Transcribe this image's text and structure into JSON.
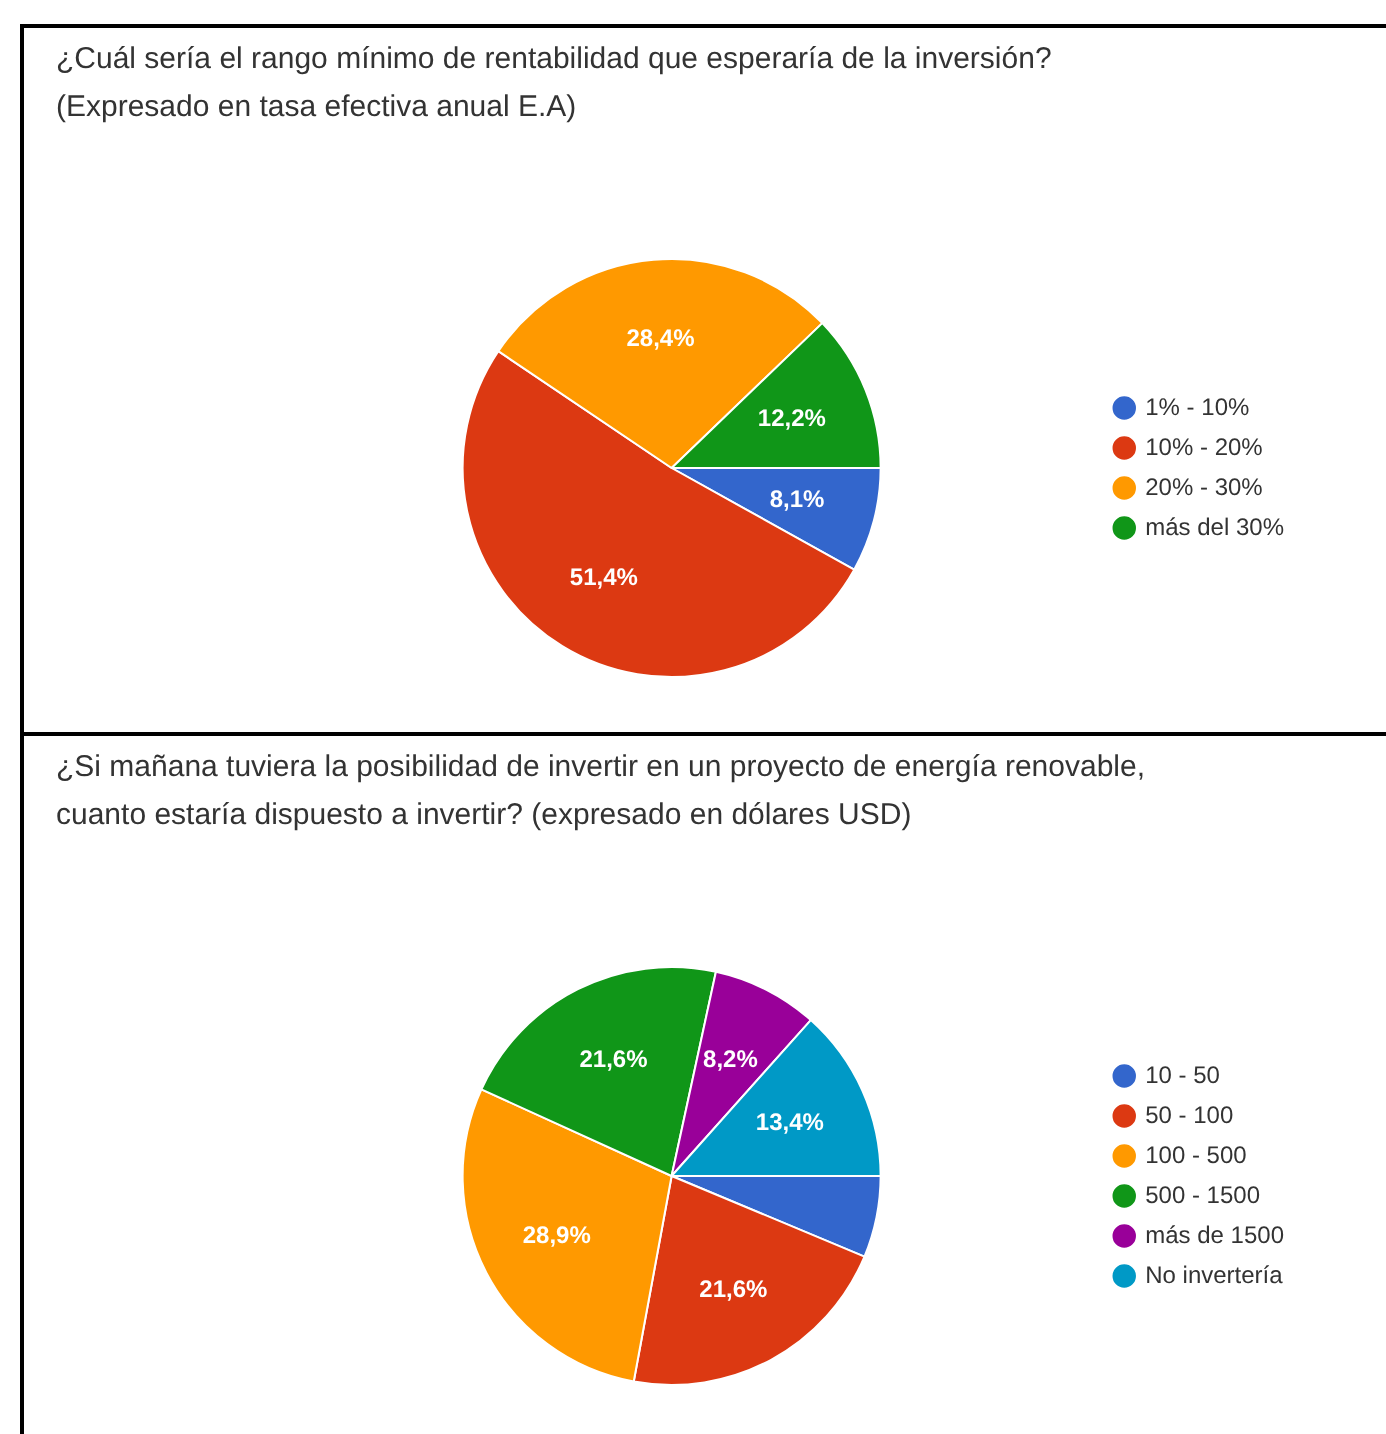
{
  "chart_data": [
    {
      "type": "pie",
      "title": "¿Cuál sería el rango mínimo de rentabilidad que esperaría de la inversión?\n(Expresado en tasa efectiva anual E.A)",
      "categories": [
        "1% - 10%",
        "10% - 20%",
        "20% - 30%",
        "más del 30%"
      ],
      "values": [
        8.1,
        51.4,
        28.4,
        12.2
      ],
      "colors": [
        "#3366cc",
        "#dc3912",
        "#ff9900",
        "#109618"
      ],
      "value_labels": [
        "8,1%",
        "51,4%",
        "28,4%",
        "12,2%"
      ],
      "legend": "right"
    },
    {
      "type": "pie",
      "title": "¿Si mañana tuviera la posibilidad de invertir en un proyecto de energía renovable,\ncuanto estaría dispuesto a invertir? (expresado en dólares USD)",
      "categories": [
        "10 - 50",
        "50 - 100",
        "100 - 500",
        "500 - 1500",
        "más de 1500",
        "No invertería"
      ],
      "values": [
        6.3,
        21.6,
        28.9,
        21.6,
        8.2,
        13.4
      ],
      "colors": [
        "#3366cc",
        "#dc3912",
        "#ff9900",
        "#109618",
        "#990099",
        "#0099c6"
      ],
      "value_labels": [
        null,
        "21,6%",
        "28,9%",
        "21,6%",
        "8,2%",
        "13,4%"
      ],
      "legend": "right"
    }
  ]
}
